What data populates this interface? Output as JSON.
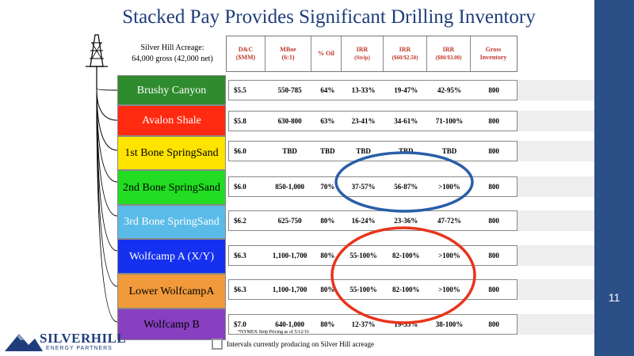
{
  "title": "Stacked Pay Provides Significant Drilling Inventory",
  "page_number": "11",
  "acreage": {
    "line1": "Silver Hill Acreage:",
    "line2": "64,000 gross (42,000 net)"
  },
  "columns": [
    {
      "label": "D&C",
      "sub": "($MM)"
    },
    {
      "label": "MBoe",
      "sub": "(6:1)"
    },
    {
      "label": "% Oil",
      "sub": ""
    },
    {
      "label": "IRR",
      "sub": "(Strip)"
    },
    {
      "label": "IRR",
      "sub": "($60/$2.50)"
    },
    {
      "label": "IRR",
      "sub": "($80/$3.00)"
    },
    {
      "label": "Gross",
      "sub": "Inventory"
    }
  ],
  "layers": [
    {
      "line1": "Brushy Canyon",
      "line2": "",
      "color": "#2e8b2e",
      "text_color": "#ffffff"
    },
    {
      "line1": "Avalon Shale",
      "line2": "",
      "color": "#ff2a10",
      "text_color": "#ffffff"
    },
    {
      "line1": "1st Bone Spring",
      "line2": "Sand",
      "color": "#ffe400",
      "text_color": "#000000"
    },
    {
      "line1": "2nd Bone Spring",
      "line2": "Sand",
      "color": "#22dd22",
      "text_color": "#000000"
    },
    {
      "line1": "3rd Bone Spring",
      "line2": "Sand",
      "color": "#5bbbe8",
      "text_color": "#ffffff"
    },
    {
      "line1": "Wolfcamp A (X/",
      "line2": "Y)",
      "color": "#1530ee",
      "text_color": "#ffffff"
    },
    {
      "line1": "Lower Wolfcamp",
      "line2": "A",
      "color": "#f09a3c",
      "text_color": "#000000"
    },
    {
      "line1": "Wolfcamp B",
      "line2": "",
      "color": "#8840c0",
      "text_color": "#000000"
    }
  ],
  "rows": [
    [
      "$5.5",
      "550-785",
      "64%",
      "13-33%",
      "19-47%",
      "42-95%",
      "800"
    ],
    [
      "$5.8",
      "630-800",
      "63%",
      "23-41%",
      "34-61%",
      "71-100%",
      "800"
    ],
    [
      "$6.0",
      "TBD",
      "TBD",
      "TBD",
      "TBD",
      "TBD",
      "800"
    ],
    [
      "$6.0",
      "850-1,000",
      "70%",
      "37-57%",
      "56-87%",
      ">100%",
      "800"
    ],
    [
      "$6.2",
      "625-750",
      "80%",
      "16-24%",
      "23-36%",
      "47-72%",
      "800"
    ],
    [
      "$6.3",
      "1,100-1,700",
      "80%",
      "55-100%",
      "82-100%",
      ">100%",
      "800"
    ],
    [
      "$6.3",
      "1,100-1,700",
      "80%",
      "55-100%",
      "82-100%",
      ">100%",
      "800"
    ],
    [
      "$7.0",
      "640-1,000",
      "80%",
      "12-37%",
      "19-55%",
      "38-100%",
      "800"
    ]
  ],
  "footnote": "*NYMEX Strip Pricing as of 5/12/16",
  "legend": "Intervals currently producing on Silver Hill acreage",
  "logo": {
    "word": "SILVERHILL",
    "sub": "ENERGY PARTNERS"
  },
  "colors": {
    "title": "#1f3d7a",
    "sidebar": "#2b4f87",
    "header_text": "#c0392b",
    "oval_blue": "#2a5fa8",
    "oval_red": "#e8341c"
  }
}
